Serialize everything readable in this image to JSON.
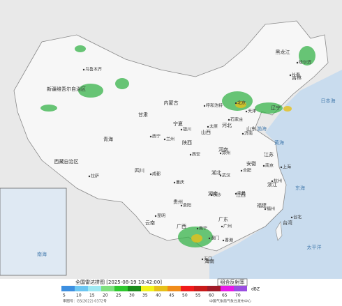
{
  "map": {
    "region_labels": [
      "新疆维吾尔自治区",
      "西藏自治区",
      "青海",
      "内蒙古",
      "黑龙江",
      "吉林",
      "辽宁",
      "河北",
      "山西",
      "陕西",
      "甘肃",
      "宁夏",
      "四川",
      "云南",
      "贵州",
      "湖南",
      "湖北",
      "河南",
      "山东",
      "江苏",
      "安徽",
      "浙江",
      "江西",
      "福建",
      "广东",
      "广西",
      "海南",
      "台湾"
    ],
    "city_labels": [
      "乌鲁木齐",
      "拉萨",
      "西宁",
      "兰州",
      "银川",
      "呼和浩特",
      "哈尔滨",
      "长春",
      "北京",
      "天津",
      "石家庄",
      "太原",
      "济南",
      "西安",
      "郑州",
      "成都",
      "重庆",
      "武汉",
      "合肥",
      "南京",
      "上海",
      "杭州",
      "长沙",
      "南昌",
      "福州",
      "台北",
      "贵阳",
      "昆明",
      "南宁",
      "广州",
      "香港",
      "澳门",
      "海口"
    ],
    "sea_labels": [
      "渤海",
      "黄海",
      "东海",
      "南海",
      "日本海",
      "太平洋"
    ]
  },
  "legend": {
    "title": "全国雷达拼图 [2025-08-19 10:42:00]",
    "product": "组合反射率",
    "unit": "dBZ",
    "items": [
      {
        "value": 5,
        "color": "#3d8fe0"
      },
      {
        "value": 10,
        "color": "#6cc6f2"
      },
      {
        "value": 15,
        "color": "#9ee8f2"
      },
      {
        "value": 20,
        "color": "#7fe07f"
      },
      {
        "value": 25,
        "color": "#2ec82e"
      },
      {
        "value": 30,
        "color": "#1a8c1a"
      },
      {
        "value": 35,
        "color": "#f2f21a"
      },
      {
        "value": 40,
        "color": "#e6c01a"
      },
      {
        "value": 45,
        "color": "#f08c1a"
      },
      {
        "value": 50,
        "color": "#f01a1a"
      },
      {
        "value": 55,
        "color": "#c81a1a"
      },
      {
        "value": 60,
        "color": "#a01a28"
      },
      {
        "value": 65,
        "color": "#e61ae6"
      },
      {
        "value": 70,
        "color": "#9a4ee0"
      }
    ],
    "approval": "审图号：GS(2022) 0372号",
    "source": "中国气象局气象台发布中心"
  }
}
